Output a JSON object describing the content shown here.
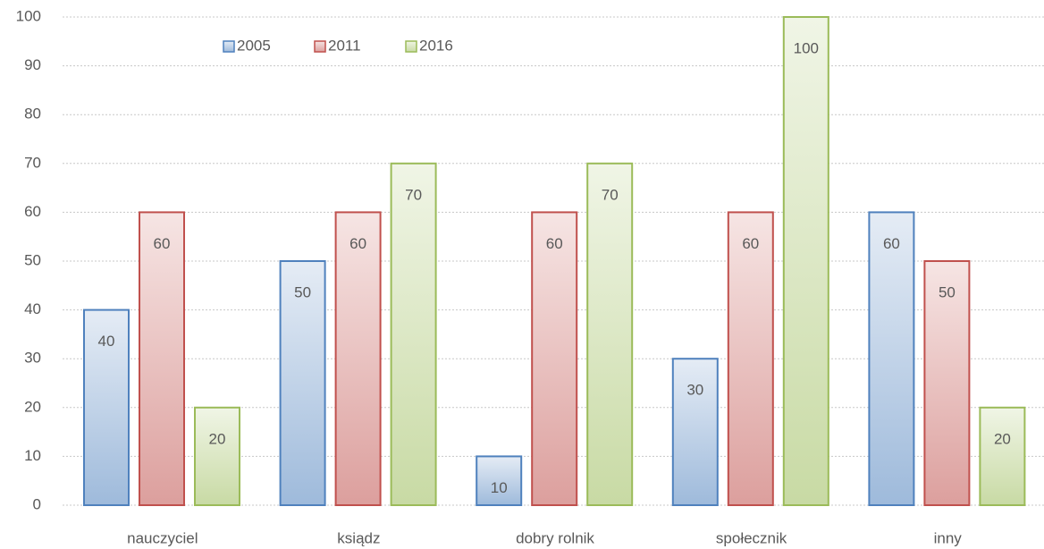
{
  "chart_data": {
    "type": "bar",
    "categories": [
      "nauczyciel",
      "ksiądz",
      "dobry rolnik",
      "społecznik",
      "inny"
    ],
    "series": [
      {
        "name": "2005",
        "color": "#4f81bd",
        "values": [
          40,
          50,
          10,
          30,
          60
        ]
      },
      {
        "name": "2011",
        "color": "#c0504d",
        "values": [
          60,
          60,
          60,
          60,
          50
        ]
      },
      {
        "name": "2016",
        "color": "#9bbb59",
        "values": [
          20,
          70,
          70,
          100,
          20
        ]
      }
    ],
    "ylim": [
      0,
      100
    ],
    "yticks": [
      0,
      10,
      20,
      30,
      40,
      50,
      60,
      70,
      80,
      90,
      100
    ],
    "grid": true,
    "legend": "top-left",
    "data_labels": true
  }
}
